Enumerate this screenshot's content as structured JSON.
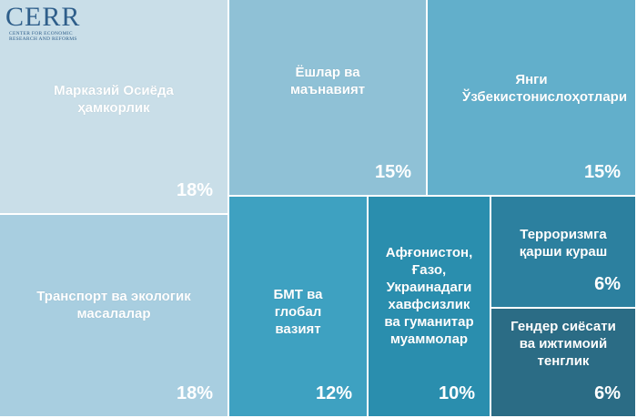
{
  "logo": {
    "word": "CERR",
    "sub_line1": "CENTER FOR ECONOMIC",
    "sub_line2": "RESEARCH AND REFORMS"
  },
  "chart_data": {
    "type": "treemap",
    "value_unit": "%",
    "items": [
      {
        "label": "Марказий Осиёда ҳамкорлик",
        "value": 18,
        "value_label": "18%",
        "color": "#c9dee8"
      },
      {
        "label": "Транспорт ва экологик масалалар",
        "value": 18,
        "value_label": "18%",
        "color": "#a8cee0"
      },
      {
        "label": "Ёшлар ва маънавият",
        "value": 15,
        "value_label": "15%",
        "color": "#8fc1d6"
      },
      {
        "label": "Янги Ўзбекистонислоҳотлари",
        "value": 15,
        "value_label": "15%",
        "color": "#62afcb"
      },
      {
        "label": "БМТ ва глобал вазият",
        "value": 12,
        "value_label": "12%",
        "color": "#3ea1c1"
      },
      {
        "label": "Афғонистон, Ғазо, Украинадаги хавфсизлик ва гуманитар муаммолар",
        "value": 10,
        "value_label": "10%",
        "color": "#2a8eae"
      },
      {
        "label": "Терроризмга қарши кураш",
        "value": 6,
        "value_label": "6%",
        "color": "#2c809f"
      },
      {
        "label": "Гендер сиёсати ва ижтимоий тенглик",
        "value": 6,
        "value_label": "6%",
        "color": "#2b6c85"
      }
    ]
  }
}
